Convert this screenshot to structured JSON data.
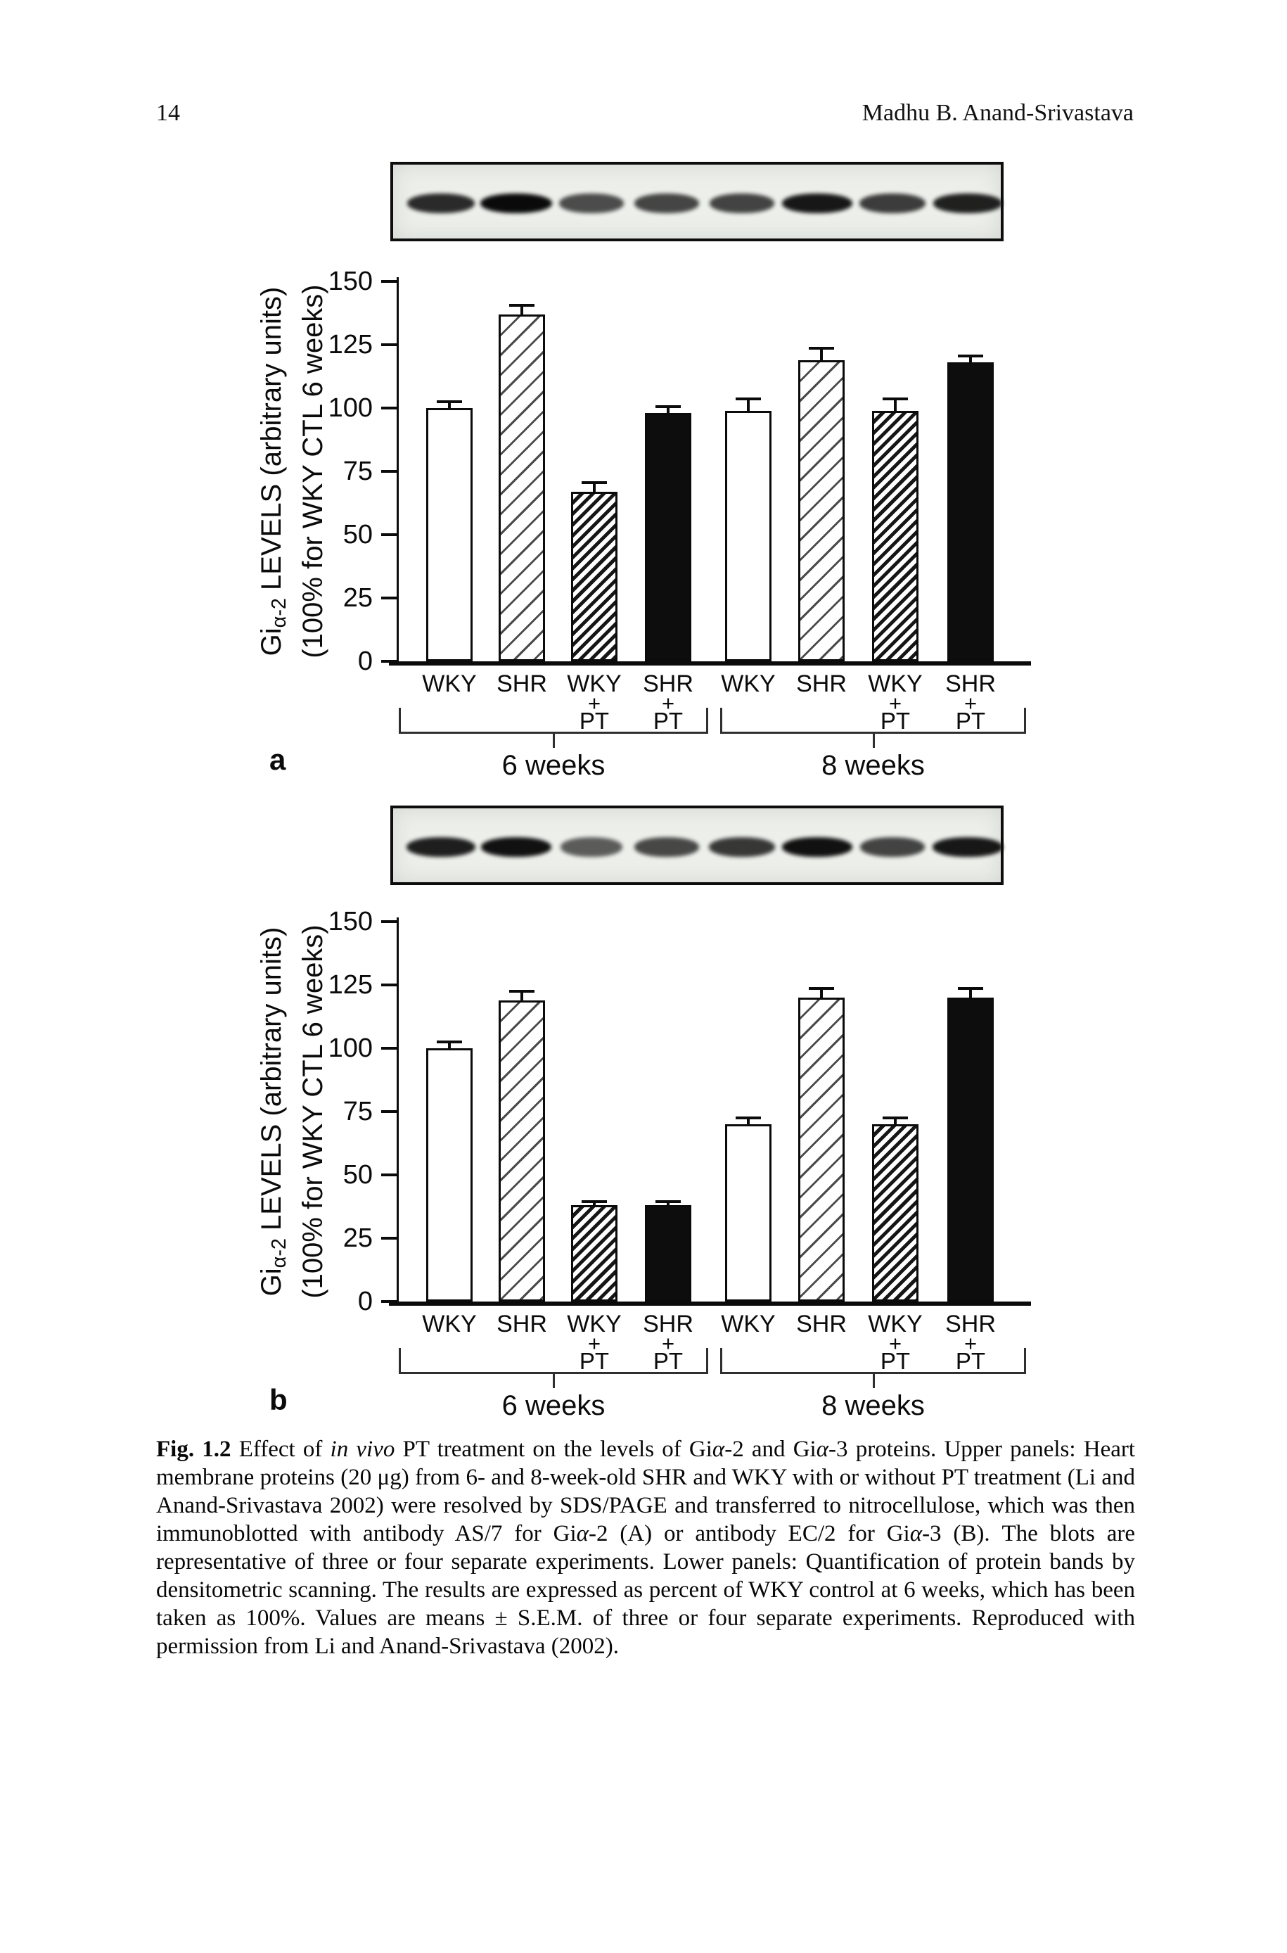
{
  "header": {
    "page_number": "14",
    "running_title": "Madhu B. Anand-Srivastava"
  },
  "figure": {
    "panels": [
      {
        "label": "a",
        "blot": {
          "band_intensities": [
            0.78,
            1.0,
            0.55,
            0.6,
            0.62,
            0.9,
            0.66,
            0.84
          ]
        },
        "chart_data": {
          "type": "bar",
          "ylabel": {
            "pre": "Gi",
            "sub": "α-2",
            "post": " LEVELS (arbitrary units)",
            "line2": "(100% for WKY CTL 6 weeks)"
          },
          "ylim": [
            0,
            150
          ],
          "yticks": [
            0,
            25,
            50,
            75,
            100,
            125,
            150
          ],
          "groups": [
            {
              "label": "6 weeks",
              "bars": [
                {
                  "label": "WKY",
                  "value": 100,
                  "error": 2,
                  "style": "open",
                  "pt": false
                },
                {
                  "label": "SHR",
                  "value": 137,
                  "error": 3,
                  "style": "hatch_wide",
                  "pt": false
                },
                {
                  "label": "WKY",
                  "value": 67,
                  "error": 3,
                  "style": "hatch_dense",
                  "pt": true,
                  "sublabel": [
                    "+",
                    "PT"
                  ]
                },
                {
                  "label": "SHR",
                  "value": 98,
                  "error": 2,
                  "style": "solid",
                  "pt": true,
                  "sublabel": [
                    "+",
                    "PT"
                  ]
                }
              ]
            },
            {
              "label": "8 weeks",
              "bars": [
                {
                  "label": "WKY",
                  "value": 99,
                  "error": 4,
                  "style": "open",
                  "pt": false
                },
                {
                  "label": "SHR",
                  "value": 119,
                  "error": 4,
                  "style": "hatch_wide",
                  "pt": false
                },
                {
                  "label": "WKY",
                  "value": 99,
                  "error": 4,
                  "style": "hatch_dense",
                  "pt": true,
                  "sublabel": [
                    "+",
                    "PT"
                  ]
                },
                {
                  "label": "SHR",
                  "value": 118,
                  "error": 2,
                  "style": "solid",
                  "pt": true,
                  "sublabel": [
                    "+",
                    "PT"
                  ]
                }
              ]
            }
          ]
        }
      },
      {
        "label": "b",
        "blot": {
          "band_intensities": [
            0.86,
            0.95,
            0.45,
            0.58,
            0.7,
            0.95,
            0.62,
            0.9
          ]
        },
        "chart_data": {
          "type": "bar",
          "ylabel": {
            "pre": "Gi",
            "sub": "α-2",
            "post": " LEVELS (arbitrary units)",
            "line2": "(100% for WKY CTL 6 weeks)"
          },
          "ylim": [
            0,
            150
          ],
          "yticks": [
            0,
            25,
            50,
            75,
            100,
            125,
            150
          ],
          "groups": [
            {
              "label": "6 weeks",
              "bars": [
                {
                  "label": "WKY",
                  "value": 100,
                  "error": 2,
                  "style": "open",
                  "pt": false
                },
                {
                  "label": "SHR",
                  "value": 119,
                  "error": 3,
                  "style": "hatch_wide",
                  "pt": false
                },
                {
                  "label": "WKY",
                  "value": 38,
                  "error": 1,
                  "style": "hatch_dense",
                  "pt": true,
                  "sublabel": [
                    "+",
                    "PT"
                  ]
                },
                {
                  "label": "SHR",
                  "value": 38,
                  "error": 1,
                  "style": "solid",
                  "pt": true,
                  "sublabel": [
                    "+",
                    "PT"
                  ]
                }
              ]
            },
            {
              "label": "8 weeks",
              "bars": [
                {
                  "label": "WKY",
                  "value": 70,
                  "error": 2,
                  "style": "open",
                  "pt": false
                },
                {
                  "label": "SHR",
                  "value": 120,
                  "error": 3,
                  "style": "hatch_wide",
                  "pt": false
                },
                {
                  "label": "WKY",
                  "value": 70,
                  "error": 2,
                  "style": "hatch_dense",
                  "pt": true,
                  "sublabel": [
                    "+",
                    "PT"
                  ]
                },
                {
                  "label": "SHR",
                  "value": 120,
                  "error": 3,
                  "style": "solid",
                  "pt": true,
                  "sublabel": [
                    "+",
                    "PT"
                  ]
                }
              ]
            }
          ]
        }
      }
    ],
    "caption_segments": [
      {
        "t": "Fig. 1.2",
        "b": true
      },
      {
        "t": "  Effect of "
      },
      {
        "t": "in vivo",
        "i": true
      },
      {
        "t": " PT treatment on the levels of Gi"
      },
      {
        "t": "α",
        "i": true
      },
      {
        "t": "-2 and Gi"
      },
      {
        "t": "α",
        "i": true
      },
      {
        "t": "-3 proteins. Upper panels: Heart membrane proteins (20 μg) from 6- and 8-week-old SHR and WKY with or without PT treatment (Li and Anand-Srivastava 2002) were resolved by SDS/PAGE and transferred to nitrocellulose, which was then immunoblotted with antibody AS/7 for Gi"
      },
      {
        "t": "α",
        "i": true
      },
      {
        "t": "-2 (A) or antibody EC/2 for Gi"
      },
      {
        "t": "α",
        "i": true
      },
      {
        "t": "-3 (B). The blots are representative of three or four separate experiments. Lower panels: Quantification of protein bands by densitometric scanning. The results are expressed as percent of WKY control at 6 weeks, which has been taken as 100%. Values are means ± S.E.M. of three or four separate experiments. Reproduced with permission from Li and Anand-Srivastava (2002)."
      }
    ]
  }
}
